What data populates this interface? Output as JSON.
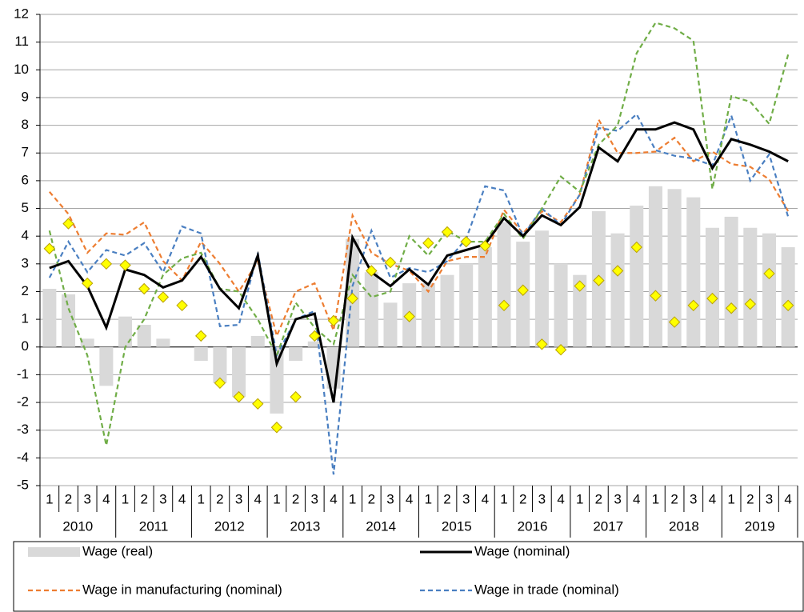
{
  "chart_data": {
    "type": "combo",
    "categories": [
      "1",
      "2",
      "3",
      "4",
      "1",
      "2",
      "3",
      "4",
      "1",
      "2",
      "3",
      "4",
      "1",
      "2",
      "3",
      "4",
      "1",
      "2",
      "3",
      "4",
      "1",
      "2",
      "3",
      "4",
      "1",
      "2",
      "3",
      "4",
      "1",
      "2",
      "3",
      "4",
      "1",
      "2",
      "3",
      "4",
      "1",
      "2",
      "3",
      "4"
    ],
    "years": [
      "2010",
      "2011",
      "2012",
      "2013",
      "2014",
      "2015",
      "2016",
      "2017",
      "2018",
      "2019"
    ],
    "ylim": [
      -5,
      12
    ],
    "yticks": [
      -5,
      -4,
      -3,
      -2,
      -1,
      0,
      1,
      2,
      3,
      4,
      5,
      6,
      7,
      8,
      9,
      10,
      11,
      12
    ],
    "grid": true,
    "series": [
      {
        "name": "Wage (real)",
        "style": "bar",
        "color": "#d9d9d9",
        "values": [
          2.1,
          1.9,
          0.3,
          -1.4,
          1.1,
          0.8,
          0.3,
          0,
          -0.5,
          -1.3,
          -1.8,
          0.4,
          -2.4,
          -0.5,
          0.2,
          -1.5,
          3.9,
          2.7,
          1.6,
          2.3,
          2.3,
          2.6,
          3.0,
          3.6,
          4.5,
          3.8,
          4.2,
          3.0,
          2.6,
          4.9,
          4.1,
          5.1,
          5.8,
          5.7,
          5.4,
          4.3,
          4.7,
          4.3,
          4.1,
          3.6
        ]
      },
      {
        "name": "Wage (nominal)",
        "style": "solid",
        "color": "#000000",
        "values": [
          2.85,
          3.1,
          2.2,
          0.7,
          2.8,
          2.6,
          2.15,
          2.4,
          3.25,
          2.1,
          1.4,
          3.3,
          -0.6,
          1.0,
          1.2,
          -2.0,
          3.95,
          2.7,
          2.2,
          2.8,
          2.25,
          3.3,
          3.5,
          3.7,
          4.65,
          4.0,
          4.75,
          4.4,
          5.05,
          7.2,
          6.7,
          7.85,
          7.85,
          8.1,
          7.85,
          6.45,
          7.5,
          7.3,
          7.05,
          6.7
        ]
      },
      {
        "name": "Wage in manufacturing (nominal)",
        "style": "dashed",
        "color": "#ed7d31",
        "values": [
          5.6,
          4.8,
          3.4,
          4.1,
          4.05,
          4.5,
          3.1,
          2.4,
          3.8,
          3.0,
          2.0,
          3.1,
          0.4,
          2.0,
          2.3,
          0.6,
          4.75,
          3.4,
          3.0,
          2.75,
          2.0,
          3.1,
          3.25,
          3.25,
          4.95,
          4.1,
          4.9,
          4.5,
          5.5,
          8.2,
          7.0,
          7.0,
          7.05,
          7.55,
          6.7,
          7.05,
          6.6,
          6.5,
          6.05,
          4.9
        ]
      },
      {
        "name": "Wage in trade (nominal)",
        "style": "dashed",
        "color": "#4a7fc1",
        "values": [
          2.5,
          3.8,
          2.7,
          3.5,
          3.3,
          3.75,
          2.7,
          4.35,
          4.1,
          0.75,
          0.8,
          3.4,
          -0.3,
          1.0,
          1.3,
          -4.6,
          2.2,
          4.2,
          2.5,
          2.85,
          2.7,
          3.1,
          3.9,
          5.8,
          5.65,
          4.0,
          5.0,
          4.4,
          5.5,
          7.9,
          7.8,
          8.4,
          7.1,
          6.9,
          6.8,
          6.55,
          8.35,
          6.0,
          6.95,
          4.7
        ]
      },
      {
        "style": "dashed",
        "color": "#70ad47",
        "values": [
          4.2,
          1.4,
          -0.3,
          -3.55,
          0,
          1.0,
          2.6,
          3.2,
          3.4,
          2.1,
          2.0,
          1.0,
          -0.3,
          1.6,
          0.7,
          0.1,
          2.6,
          1.8,
          2.0,
          4.0,
          3.3,
          4.2,
          3.8,
          3.8,
          4.8,
          3.9,
          5.0,
          6.15,
          5.6,
          7.3,
          8.0,
          10.6,
          11.7,
          11.5,
          11.05,
          5.7,
          9.05,
          8.85,
          8.05,
          10.55
        ]
      },
      {
        "style": "marker",
        "color": "#ffff00",
        "values": [
          3.55,
          4.45,
          2.3,
          3.0,
          2.95,
          2.1,
          1.8,
          1.5,
          0.4,
          -1.3,
          -1.8,
          -2.05,
          -2.9,
          -1.8,
          0.4,
          0.95,
          1.75,
          2.75,
          3.05,
          1.1,
          3.75,
          4.15,
          3.8,
          3.65,
          1.5,
          2.05,
          0.1,
          -0.1,
          2.2,
          2.4,
          2.75,
          3.6,
          1.85,
          0.9,
          1.5,
          1.75,
          1.4,
          1.55,
          2.65,
          1.5
        ]
      }
    ]
  }
}
